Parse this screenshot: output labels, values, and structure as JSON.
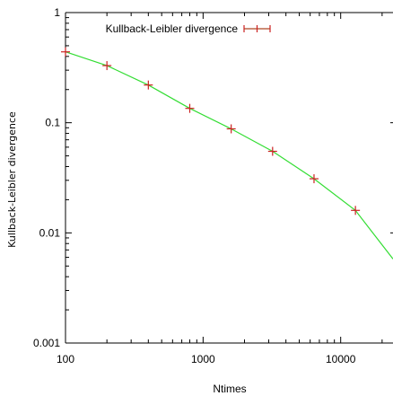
{
  "chart_data": {
    "type": "line",
    "xlabel": "Ntimes",
    "ylabel": "Kullback-Leibler divergence",
    "x_scale": "log",
    "y_scale": "log",
    "xlim": [
      100,
      24000
    ],
    "ylim": [
      0.001,
      1
    ],
    "x_ticks": [
      {
        "value": 100,
        "label": "100"
      },
      {
        "value": 1000,
        "label": "1000"
      },
      {
        "value": 10000,
        "label": "10000"
      }
    ],
    "y_ticks": [
      {
        "value": 0.001,
        "label": "0.001"
      },
      {
        "value": 0.01,
        "label": "0.01"
      },
      {
        "value": 0.1,
        "label": "0.1"
      },
      {
        "value": 1,
        "label": "1"
      }
    ],
    "grid": false,
    "legend_position": "top",
    "colors": {
      "line": "#33dd33",
      "markers": "#cc2222"
    },
    "series": [
      {
        "name": "Kullback-Leibler divergence",
        "x": [
          100,
          200,
          400,
          800,
          1600,
          3200,
          6400,
          12800,
          24000
        ],
        "y": [
          0.44,
          0.33,
          0.22,
          0.135,
          0.088,
          0.055,
          0.031,
          0.016,
          0.0058
        ],
        "markers_on_x": [
          100,
          200,
          400,
          800,
          1600,
          3200,
          6400,
          12800
        ]
      }
    ]
  }
}
